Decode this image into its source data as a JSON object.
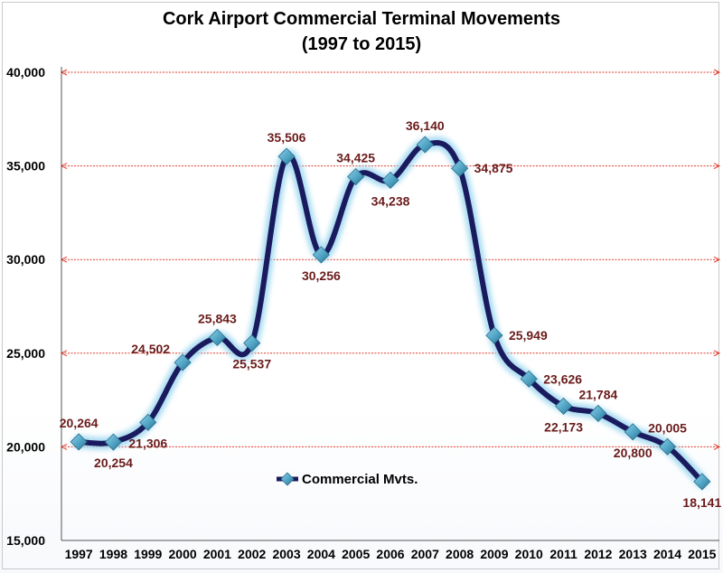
{
  "chart_data": {
    "type": "line",
    "title": "Cork Airport Commercial Terminal Movements",
    "subtitle": "(1997 to 2015)",
    "xlabel": "",
    "ylabel": "",
    "categories": [
      "1997",
      "1998",
      "1999",
      "2000",
      "2001",
      "2002",
      "2003",
      "2004",
      "2005",
      "2006",
      "2007",
      "2008",
      "2009",
      "2010",
      "2011",
      "2012",
      "2013",
      "2014",
      "2015"
    ],
    "series": [
      {
        "name": "Commercial Mvts.",
        "values": [
          20264,
          20254,
          21306,
          24502,
          25843,
          25537,
          35506,
          30256,
          34425,
          34238,
          36140,
          34875,
          25949,
          23626,
          22173,
          21784,
          20800,
          20005,
          18141
        ],
        "data_labels": [
          "20,264",
          "20,254",
          "21,306",
          "24,502",
          "25,843",
          "25,537",
          "35,506",
          "30,256",
          "34,425",
          "34,238",
          "36,140",
          "34,875",
          "25,949",
          "23,626",
          "22,173",
          "21,784",
          "20,800",
          "20,005",
          "18,141"
        ]
      }
    ],
    "ylim": [
      15000,
      40000
    ],
    "yticks": [
      15000,
      20000,
      25000,
      30000,
      35000,
      40000
    ],
    "ytick_labels": [
      "15,000",
      "20,000",
      "25,000",
      "30,000",
      "35,000",
      "40,000"
    ],
    "grid": true,
    "legend_position": "inside-bottom-center",
    "colors": {
      "line": "#1a1a5e",
      "glow": "#9fd8f0",
      "marker": "#4fa3c4",
      "gridline": "#e03a2a",
      "data_label": "#6b1b1b"
    }
  }
}
